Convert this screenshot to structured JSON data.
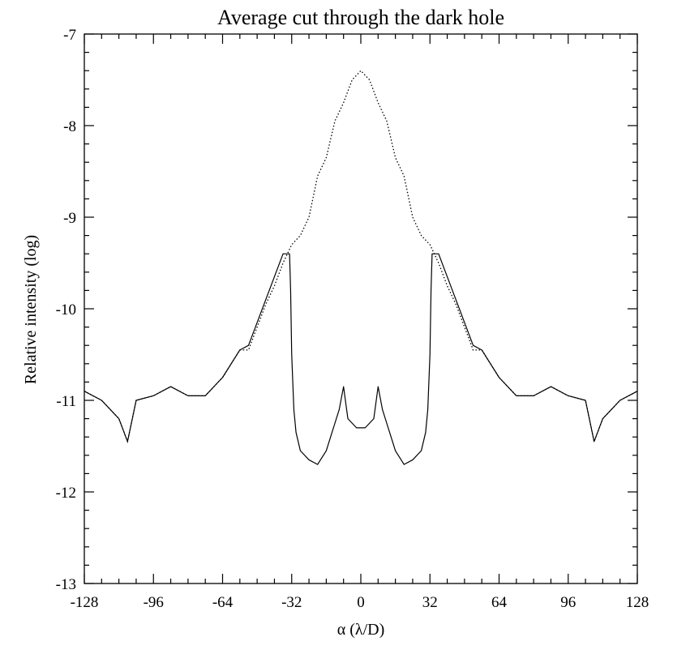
{
  "chart_data": {
    "type": "line",
    "title": "Average cut through the dark hole",
    "xlabel": "α (λ/D)",
    "ylabel": "Relative intensity (log)",
    "xlim": [
      -128,
      128
    ],
    "ylim": [
      -13,
      -7
    ],
    "xticks": [
      "-128",
      "-96",
      "-64",
      "-32",
      "0",
      "32",
      "64",
      "96",
      "128"
    ],
    "yticks": [
      "-7",
      "-8",
      "-9",
      "-10",
      "-11",
      "-12",
      "-13"
    ],
    "grid": false,
    "series": [
      {
        "style": "dotted",
        "x": [
          -128,
          -120,
          -112,
          -108,
          -104,
          -96,
          -88,
          -80,
          -72,
          -64,
          -56,
          -52,
          -48,
          -44,
          -40,
          -36,
          -32,
          -28,
          -24,
          -20,
          -16,
          -12,
          -8,
          -4,
          0,
          4,
          8,
          12,
          16,
          20,
          24,
          28,
          32,
          36,
          40,
          44,
          48,
          52,
          56,
          64,
          72,
          80,
          88,
          96,
          104,
          108,
          112,
          120,
          128
        ],
        "y": [
          -10.9,
          -11.0,
          -11.2,
          -11.45,
          -11.0,
          -10.95,
          -10.85,
          -10.95,
          -10.95,
          -10.75,
          -10.45,
          -10.45,
          -10.2,
          -9.95,
          -9.75,
          -9.5,
          -9.3,
          -9.2,
          -9.0,
          -8.55,
          -8.35,
          -7.95,
          -7.75,
          -7.5,
          -7.4,
          -7.5,
          -7.75,
          -7.95,
          -8.35,
          -8.55,
          -9.0,
          -9.2,
          -9.3,
          -9.5,
          -9.75,
          -9.95,
          -10.2,
          -10.45,
          -10.45,
          -10.75,
          -10.95,
          -10.95,
          -10.85,
          -10.95,
          -11.0,
          -11.45,
          -11.2,
          -11.0,
          -10.9
        ]
      },
      {
        "style": "solid",
        "x": [
          -128,
          -120,
          -112,
          -108,
          -104,
          -96,
          -88,
          -80,
          -72,
          -64,
          -56,
          -52,
          -48,
          -44,
          -40,
          -36,
          -33,
          -32.5,
          -32,
          -31,
          -30,
          -28,
          -24,
          -20,
          -16,
          -14,
          -12,
          -10,
          -8,
          -6,
          -4,
          -2,
          0,
          2,
          4,
          6,
          8,
          10,
          12,
          14,
          16,
          20,
          24,
          28,
          30,
          31,
          32,
          32.5,
          33,
          36,
          40,
          44,
          48,
          52,
          56,
          64,
          72,
          80,
          88,
          96,
          104,
          108,
          112,
          120,
          128
        ],
        "y": [
          -10.9,
          -11.0,
          -11.2,
          -11.45,
          -11.0,
          -10.95,
          -10.85,
          -10.95,
          -10.95,
          -10.75,
          -10.45,
          -10.4,
          -10.15,
          -9.9,
          -9.65,
          -9.4,
          -9.4,
          -9.8,
          -10.5,
          -11.1,
          -11.35,
          -11.55,
          -11.65,
          -11.7,
          -11.55,
          -11.4,
          -11.25,
          -11.1,
          -10.85,
          -11.2,
          -11.25,
          -11.3,
          -11.3,
          -11.3,
          -11.25,
          -11.2,
          -10.85,
          -11.1,
          -11.25,
          -11.4,
          -11.55,
          -11.7,
          -11.65,
          -11.55,
          -11.35,
          -11.1,
          -10.5,
          -9.8,
          -9.4,
          -9.4,
          -9.65,
          -9.9,
          -10.15,
          -10.4,
          -10.45,
          -10.75,
          -10.95,
          -10.95,
          -10.85,
          -10.95,
          -11.0,
          -11.45,
          -11.2,
          -11.0,
          -10.9
        ]
      }
    ]
  }
}
